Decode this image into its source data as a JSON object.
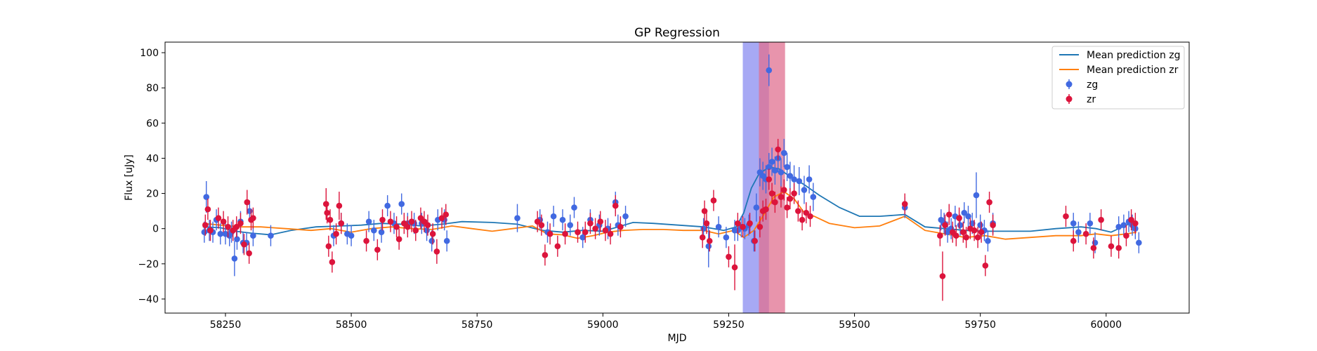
{
  "chart_data": {
    "type": "scatter",
    "title": "GP Regression",
    "xlabel": "MJD",
    "ylabel": "Flux [uJy]",
    "xlim": [
      58130,
      60165
    ],
    "ylim": [
      -48,
      106
    ],
    "x_ticks": [
      58250,
      58500,
      58750,
      59000,
      59250,
      59500,
      59750,
      60000
    ],
    "y_ticks": [
      -40,
      -20,
      0,
      20,
      40,
      60,
      80,
      100
    ],
    "grid": false,
    "legend_position": "top-right",
    "shaded_regions": [
      {
        "x0": 59278,
        "x1": 59330,
        "color": "#8a8cf0"
      },
      {
        "x0": 59310,
        "x1": 59362,
        "color": "#e07090"
      }
    ],
    "series": [
      {
        "name": "Mean prediction zg",
        "kind": "line",
        "color": "#1f77b4",
        "x": [
          58205,
          58240,
          58270,
          58300,
          58340,
          58380,
          58430,
          58480,
          58520,
          58560,
          58600,
          58640,
          58680,
          58720,
          58780,
          58830,
          58880,
          58920,
          58960,
          59000,
          59030,
          59060,
          59100,
          59150,
          59200,
          59240,
          59265,
          59280,
          59295,
          59310,
          59330,
          59350,
          59370,
          59400,
          59430,
          59470,
          59510,
          59550,
          59600,
          59640,
          59680,
          59720,
          59760,
          59800,
          59850,
          59900,
          59950,
          59980,
          60010,
          60040,
          60060
        ],
        "y": [
          1,
          0.5,
          -1.5,
          -2.5,
          -3.5,
          -1,
          1,
          1.5,
          2,
          3,
          2.5,
          1.5,
          2.5,
          4,
          3.5,
          2.5,
          -1,
          -2,
          -1,
          -1.5,
          1,
          3.5,
          3,
          2,
          1,
          -1,
          1,
          9,
          23,
          31,
          35,
          34,
          30,
          25,
          19,
          12,
          7,
          7,
          8,
          1,
          0,
          -1,
          -1.5,
          -1.5,
          -1.5,
          0,
          1,
          0,
          -2,
          2,
          4
        ]
      },
      {
        "name": "Mean prediction zr",
        "kind": "line",
        "color": "#ff7f0e",
        "x": [
          58205,
          58240,
          58280,
          58320,
          58370,
          58420,
          58460,
          58500,
          58540,
          58580,
          58620,
          58660,
          58700,
          58740,
          58780,
          58820,
          58860,
          58890,
          58920,
          58950,
          58980,
          59010,
          59040,
          59080,
          59120,
          59160,
          59200,
          59230,
          59260,
          59280,
          59300,
          59320,
          59340,
          59360,
          59380,
          59400,
          59420,
          59450,
          59500,
          59550,
          59600,
          59640,
          59680,
          59720,
          59760,
          59800,
          59850,
          59900,
          59950,
          59980,
          60010,
          60040,
          60060
        ],
        "y": [
          3,
          2,
          1,
          1,
          0,
          -1,
          0,
          -2,
          0,
          1,
          0,
          -0.5,
          1.5,
          0,
          -1.5,
          0,
          1.5,
          -3,
          -3.5,
          -5.5,
          -4,
          -2,
          -1,
          -0.5,
          -0.5,
          -1,
          -1,
          -3,
          -1,
          -5,
          -1,
          8,
          18,
          21,
          17,
          9,
          7,
          3,
          0.5,
          1.5,
          7,
          -1,
          -3,
          -5,
          -4,
          -6,
          -5,
          -4,
          -4,
          -3,
          -4,
          -3,
          -2
        ]
      },
      {
        "name": "zg",
        "kind": "errorbar",
        "color": "#4169e1",
        "x": [
          58208,
          58212,
          58218,
          58225,
          58232,
          58240,
          58250,
          58258,
          58262,
          58268,
          58273,
          58280,
          58285,
          58292,
          58298,
          58305,
          58340,
          58465,
          58480,
          58492,
          58500,
          58535,
          58545,
          58560,
          58572,
          58585,
          58600,
          58612,
          58625,
          58640,
          58650,
          58660,
          58672,
          58685,
          58690,
          58830,
          58875,
          58890,
          58902,
          58920,
          58935,
          58943,
          58960,
          58975,
          58993,
          59010,
          59025,
          59030,
          59045,
          59200,
          59210,
          59230,
          59245,
          59262,
          59268,
          59275,
          59282,
          59290,
          59300,
          59305,
          59312,
          59318,
          59324,
          59330,
          59336,
          59342,
          59348,
          59354,
          59360,
          59366,
          59372,
          59380,
          59390,
          59400,
          59410,
          59418,
          59600,
          59672,
          59678,
          59685,
          59692,
          59700,
          59710,
          59718,
          59726,
          59734,
          59742,
          59750,
          59758,
          59765,
          59775,
          59935,
          59945,
          59968,
          59978,
          60025,
          60035,
          60045,
          60052,
          60058,
          60065
        ],
        "y": [
          -2,
          18,
          -1,
          -2,
          5,
          -3,
          -3,
          -4,
          -2,
          -17,
          -6,
          4,
          -8,
          -8,
          10,
          -4,
          -4,
          -4,
          3,
          -3,
          -4,
          4,
          -1,
          -2,
          13,
          3,
          14,
          3,
          3,
          3,
          -1,
          -7,
          5,
          5,
          -7,
          6,
          5,
          -2,
          7,
          5,
          2,
          12,
          -5,
          5,
          2,
          0,
          15,
          2,
          7,
          0,
          -10,
          1,
          -5,
          -1,
          -1,
          1,
          0,
          2,
          -7,
          12,
          32,
          30,
          28,
          35,
          38,
          33,
          40,
          32,
          43,
          35,
          30,
          28,
          27,
          22,
          28,
          18,
          12,
          5,
          3,
          -2,
          0,
          7,
          2,
          9,
          7,
          3,
          19,
          2,
          -1,
          -7,
          3,
          3,
          -2,
          3,
          -8,
          1,
          2,
          4,
          2,
          0,
          -8
        ],
        "yerr": [
          6,
          9,
          6,
          6,
          6,
          6,
          6,
          6,
          6,
          10,
          6,
          6,
          6,
          6,
          6,
          6,
          6,
          6,
          6,
          6,
          6,
          6,
          6,
          6,
          6,
          6,
          6,
          6,
          6,
          6,
          6,
          6,
          6,
          6,
          6,
          8,
          6,
          6,
          6,
          6,
          6,
          6,
          6,
          6,
          6,
          6,
          6,
          6,
          6,
          6,
          12,
          6,
          6,
          6,
          6,
          6,
          6,
          6,
          6,
          8,
          8,
          8,
          8,
          8,
          8,
          8,
          8,
          8,
          8,
          8,
          8,
          8,
          8,
          8,
          8,
          8,
          6,
          6,
          6,
          6,
          6,
          6,
          6,
          6,
          6,
          6,
          13,
          6,
          6,
          6,
          6,
          6,
          6,
          6,
          6,
          6,
          6,
          6,
          6,
          6,
          6
        ],
        "outlier": {
          "x": 59330,
          "y": 90,
          "yerr": 9
        }
      },
      {
        "name": "zr",
        "kind": "errorbar",
        "color": "#dc143c",
        "x": [
          58210,
          58215,
          58220,
          58236,
          58246,
          58255,
          58265,
          58272,
          58280,
          58287,
          58293,
          58297,
          58301,
          58305,
          58450,
          58452,
          58455,
          58458,
          58462,
          58470,
          58476,
          58480,
          58530,
          58552,
          58562,
          58578,
          58590,
          58595,
          58605,
          58612,
          58620,
          58628,
          58638,
          58645,
          58652,
          58662,
          58670,
          58680,
          58688,
          58870,
          58878,
          58885,
          58895,
          58910,
          58925,
          58950,
          58965,
          58975,
          58985,
          58995,
          59005,
          59015,
          59025,
          59035,
          59198,
          59202,
          59206,
          59212,
          59220,
          59250,
          59262,
          59268,
          59278,
          59292,
          59302,
          59312,
          59318,
          59324,
          59330,
          59336,
          59342,
          59348,
          59354,
          59360,
          59366,
          59372,
          59380,
          59388,
          59396,
          59404,
          59412,
          59600,
          59670,
          59675,
          59680,
          59688,
          59695,
          59702,
          59708,
          59716,
          59722,
          59730,
          59738,
          59745,
          59752,
          59760,
          59768,
          59775,
          59920,
          59935,
          59960,
          59975,
          59990,
          60010,
          60025,
          60040,
          60050,
          60058
        ],
        "y": [
          2,
          11,
          -1,
          6,
          4,
          1,
          -1,
          1,
          3,
          -9,
          15,
          -14,
          5,
          6,
          14,
          9,
          -10,
          5,
          -19,
          -3,
          13,
          3,
          -7,
          -12,
          5,
          4,
          1,
          -6,
          3,
          1,
          4,
          -1,
          6,
          4,
          2,
          -3,
          -13,
          6,
          8,
          4,
          2,
          -15,
          -3,
          -10,
          -3,
          -2,
          -2,
          3,
          0,
          4,
          -1,
          -3,
          13,
          1,
          -5,
          10,
          3,
          -7,
          16,
          -16,
          -22,
          3,
          1,
          3,
          -7,
          1,
          10,
          11,
          28,
          20,
          15,
          45,
          18,
          22,
          12,
          17,
          20,
          10,
          5,
          9,
          7,
          14,
          -4,
          -27,
          2,
          8,
          -2,
          -4,
          6,
          -2,
          -5,
          0,
          -1,
          -5,
          -2,
          -21,
          15,
          2,
          7,
          -7,
          -3,
          -11,
          5,
          -10,
          -11,
          -4,
          5,
          3
        ],
        "yerr": [
          6,
          6,
          6,
          6,
          6,
          6,
          6,
          6,
          6,
          6,
          7,
          6,
          6,
          6,
          9,
          6,
          6,
          6,
          6,
          6,
          8,
          6,
          6,
          6,
          6,
          6,
          6,
          6,
          6,
          6,
          6,
          6,
          6,
          6,
          6,
          6,
          7,
          6,
          6,
          6,
          6,
          6,
          6,
          6,
          6,
          6,
          6,
          6,
          6,
          6,
          6,
          6,
          6,
          6,
          6,
          6,
          6,
          6,
          6,
          6,
          13,
          6,
          6,
          6,
          6,
          6,
          6,
          6,
          6,
          6,
          6,
          6,
          6,
          6,
          6,
          6,
          6,
          6,
          6,
          6,
          6,
          6,
          6,
          14,
          6,
          6,
          6,
          6,
          6,
          6,
          6,
          6,
          6,
          6,
          6,
          6,
          6,
          6,
          6,
          6,
          6,
          6,
          6,
          6,
          6,
          6,
          6,
          6
        ]
      }
    ]
  }
}
